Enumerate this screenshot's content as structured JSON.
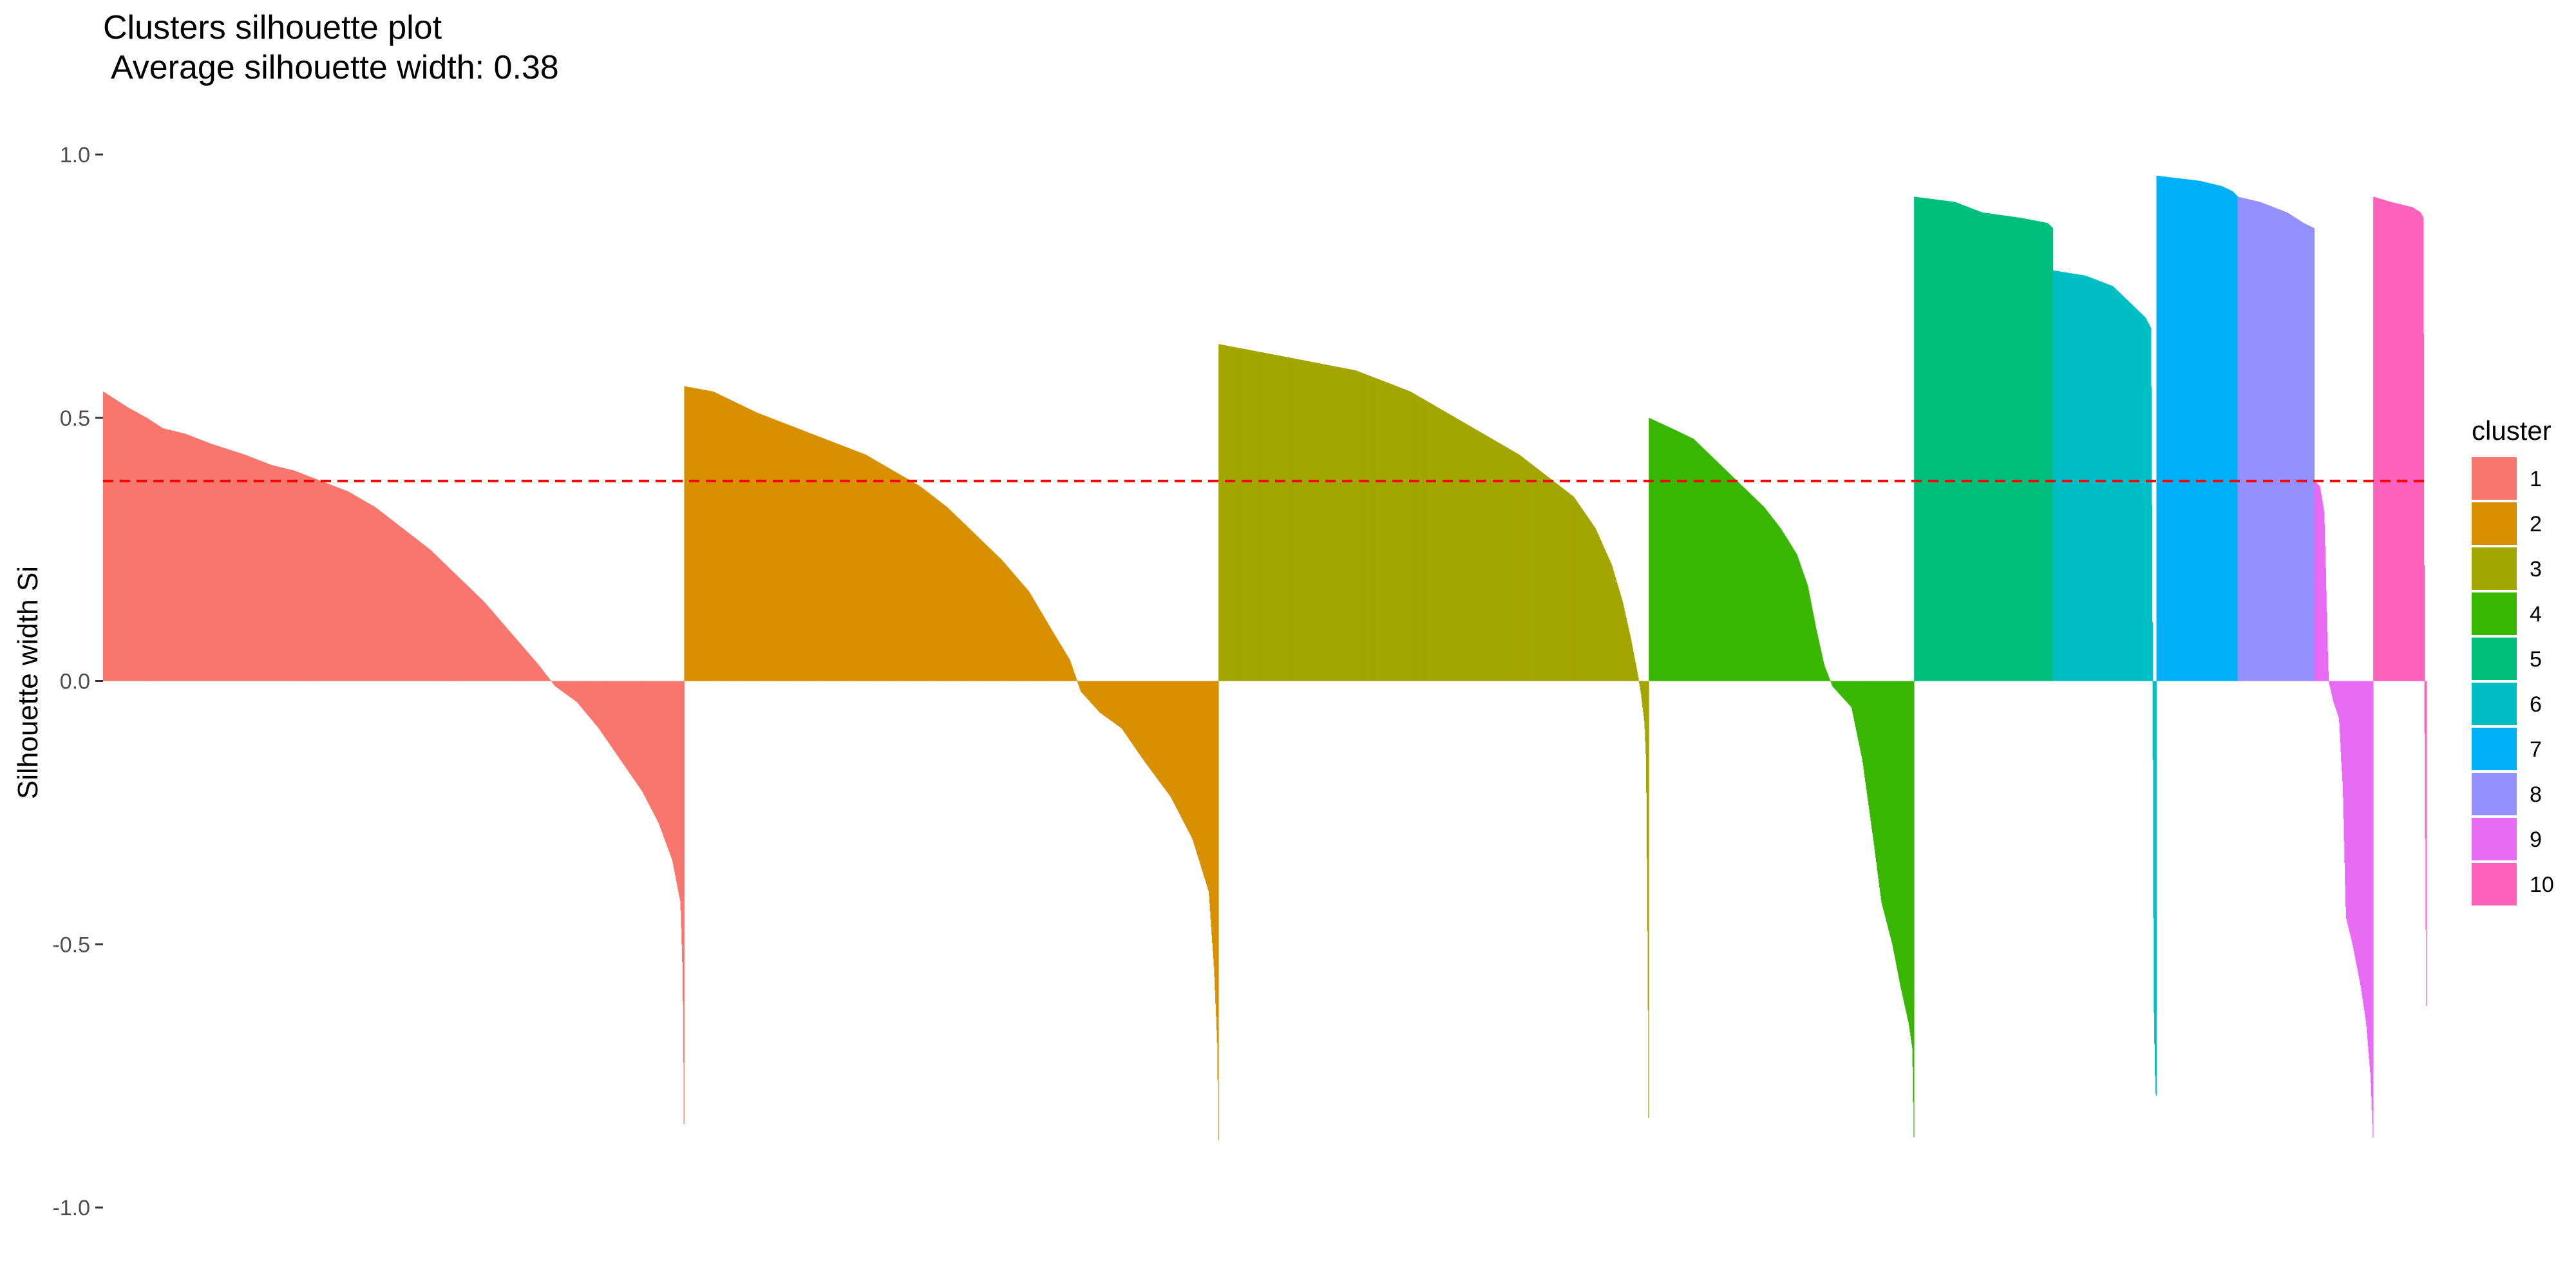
{
  "chart_data": {
    "type": "bar",
    "title": "Clusters silhouette plot",
    "subtitle": "Average silhouette width: 0.38",
    "xlabel": "",
    "ylabel": "Silhouette width Si",
    "ylim": [
      -1.0,
      1.0
    ],
    "yticks": [
      1.0,
      0.5,
      0.0,
      -0.5,
      -1.0
    ],
    "ytick_labels": [
      "1.0",
      "0.5",
      "0.0",
      "-0.5",
      "-1.0"
    ],
    "grid": false,
    "legend": {
      "title": "cluster",
      "placement": "right"
    },
    "reference_line": {
      "value": 0.38,
      "style": "dashed",
      "color": "#FF0000"
    },
    "series": [
      {
        "name": "1",
        "color": "#F8766D",
        "x_range": [
          0,
          1067
        ],
        "profile": [
          [
            0,
            0.55
          ],
          [
            45,
            0.52
          ],
          [
            80,
            0.5
          ],
          [
            110,
            0.48
          ],
          [
            150,
            0.47
          ],
          [
            200,
            0.45
          ],
          [
            260,
            0.43
          ],
          [
            310,
            0.41
          ],
          [
            350,
            0.4
          ],
          [
            400,
            0.38
          ],
          [
            450,
            0.36
          ],
          [
            500,
            0.33
          ],
          [
            550,
            0.29
          ],
          [
            600,
            0.25
          ],
          [
            650,
            0.2
          ],
          [
            700,
            0.15
          ],
          [
            750,
            0.09
          ],
          [
            800,
            0.03
          ],
          [
            830,
            -0.01
          ],
          [
            870,
            -0.04
          ],
          [
            910,
            -0.09
          ],
          [
            950,
            -0.15
          ],
          [
            990,
            -0.21
          ],
          [
            1020,
            -0.27
          ],
          [
            1045,
            -0.34
          ],
          [
            1060,
            -0.42
          ],
          [
            1064,
            -0.55
          ],
          [
            1067,
            -0.9
          ]
        ]
      },
      {
        "name": "2",
        "color": "#D89000",
        "x_range": [
          1067,
          2048
        ],
        "profile": [
          [
            1067,
            0.56
          ],
          [
            1120,
            0.55
          ],
          [
            1160,
            0.53
          ],
          [
            1200,
            0.51
          ],
          [
            1250,
            0.49
          ],
          [
            1300,
            0.47
          ],
          [
            1350,
            0.45
          ],
          [
            1400,
            0.43
          ],
          [
            1450,
            0.4
          ],
          [
            1500,
            0.37
          ],
          [
            1550,
            0.33
          ],
          [
            1600,
            0.28
          ],
          [
            1650,
            0.23
          ],
          [
            1700,
            0.17
          ],
          [
            1740,
            0.1
          ],
          [
            1775,
            0.04
          ],
          [
            1795,
            -0.02
          ],
          [
            1830,
            -0.06
          ],
          [
            1870,
            -0.09
          ],
          [
            1910,
            -0.15
          ],
          [
            1960,
            -0.22
          ],
          [
            2000,
            -0.3
          ],
          [
            2030,
            -0.4
          ],
          [
            2040,
            -0.55
          ],
          [
            2046,
            -0.7
          ],
          [
            2048,
            -0.93
          ]
        ]
      },
      {
        "name": "3",
        "color": "#A3A500",
        "x_range": [
          2048,
          2838
        ],
        "profile": [
          [
            2048,
            0.64
          ],
          [
            2150,
            0.62
          ],
          [
            2250,
            0.6
          ],
          [
            2300,
            0.59
          ],
          [
            2350,
            0.57
          ],
          [
            2400,
            0.55
          ],
          [
            2450,
            0.52
          ],
          [
            2500,
            0.49
          ],
          [
            2550,
            0.46
          ],
          [
            2600,
            0.43
          ],
          [
            2650,
            0.39
          ],
          [
            2700,
            0.35
          ],
          [
            2740,
            0.29
          ],
          [
            2770,
            0.22
          ],
          [
            2790,
            0.15
          ],
          [
            2805,
            0.08
          ],
          [
            2818,
            0.01
          ],
          [
            2823,
            -0.02
          ],
          [
            2830,
            -0.08
          ],
          [
            2833,
            -0.15
          ],
          [
            2835,
            -0.4
          ],
          [
            2837,
            -0.7
          ],
          [
            2838,
            -0.96
          ]
        ]
      },
      {
        "name": "4",
        "color": "#39B600",
        "x_range": [
          2838,
          3325
        ],
        "profile": [
          [
            2838,
            0.5
          ],
          [
            2880,
            0.48
          ],
          [
            2920,
            0.46
          ],
          [
            2970,
            0.41
          ],
          [
            3010,
            0.37
          ],
          [
            3050,
            0.33
          ],
          [
            3080,
            0.29
          ],
          [
            3110,
            0.24
          ],
          [
            3130,
            0.18
          ],
          [
            3145,
            0.1
          ],
          [
            3160,
            0.03
          ],
          [
            3175,
            -0.01
          ],
          [
            3210,
            -0.05
          ],
          [
            3230,
            -0.15
          ],
          [
            3250,
            -0.3
          ],
          [
            3265,
            -0.42
          ],
          [
            3285,
            -0.5
          ],
          [
            3300,
            -0.58
          ],
          [
            3315,
            -0.65
          ],
          [
            3322,
            -0.7
          ],
          [
            3325,
            -0.9
          ]
        ]
      },
      {
        "name": "5",
        "color": "#00BF7D",
        "x_range": [
          3325,
          3580
        ],
        "profile": [
          [
            3325,
            0.92
          ],
          [
            3400,
            0.91
          ],
          [
            3450,
            0.89
          ],
          [
            3520,
            0.88
          ],
          [
            3570,
            0.87
          ],
          [
            3580,
            0.86
          ]
        ]
      },
      {
        "name": "6",
        "color": "#00BFC4",
        "x_range": [
          3580,
          3770
        ],
        "profile": [
          [
            3580,
            0.78
          ],
          [
            3640,
            0.77
          ],
          [
            3690,
            0.75
          ],
          [
            3720,
            0.72
          ],
          [
            3750,
            0.69
          ],
          [
            3760,
            0.67
          ],
          [
            3763,
            0.0
          ],
          [
            3765,
            -0.6
          ],
          [
            3768,
            -0.78
          ],
          [
            3770,
            -0.79
          ]
        ]
      },
      {
        "name": "7",
        "color": "#00B0F6",
        "x_range": [
          3770,
          3919
        ],
        "profile": [
          [
            3770,
            0.96
          ],
          [
            3850,
            0.95
          ],
          [
            3890,
            0.94
          ],
          [
            3910,
            0.93
          ],
          [
            3919,
            0.92
          ]
        ]
      },
      {
        "name": "8",
        "color": "#9590FF",
        "x_range": [
          3919,
          4060
        ],
        "profile": [
          [
            3919,
            0.92
          ],
          [
            3960,
            0.91
          ],
          [
            4010,
            0.89
          ],
          [
            4040,
            0.87
          ],
          [
            4060,
            0.86
          ]
        ]
      },
      {
        "name": "9",
        "color": "#E76BF3",
        "x_range": [
          4060,
          4168
        ],
        "profile": [
          [
            4060,
            0.38
          ],
          [
            4070,
            0.37
          ],
          [
            4078,
            0.32
          ],
          [
            4082,
            0.15
          ],
          [
            4086,
            0.0
          ],
          [
            4095,
            -0.04
          ],
          [
            4105,
            -0.07
          ],
          [
            4112,
            -0.2
          ],
          [
            4118,
            -0.45
          ],
          [
            4130,
            -0.5
          ],
          [
            4145,
            -0.58
          ],
          [
            4155,
            -0.65
          ],
          [
            4163,
            -0.75
          ],
          [
            4168,
            -0.88
          ]
        ]
      },
      {
        "name": "10",
        "color": "#FF62BC",
        "x_range": [
          4168,
          4266
        ],
        "profile": [
          [
            4168,
            0.92
          ],
          [
            4200,
            0.91
          ],
          [
            4240,
            0.9
          ],
          [
            4255,
            0.89
          ],
          [
            4260,
            0.88
          ],
          [
            4262,
            0.0
          ],
          [
            4264,
            -0.4
          ],
          [
            4266,
            -0.69
          ]
        ]
      }
    ]
  }
}
